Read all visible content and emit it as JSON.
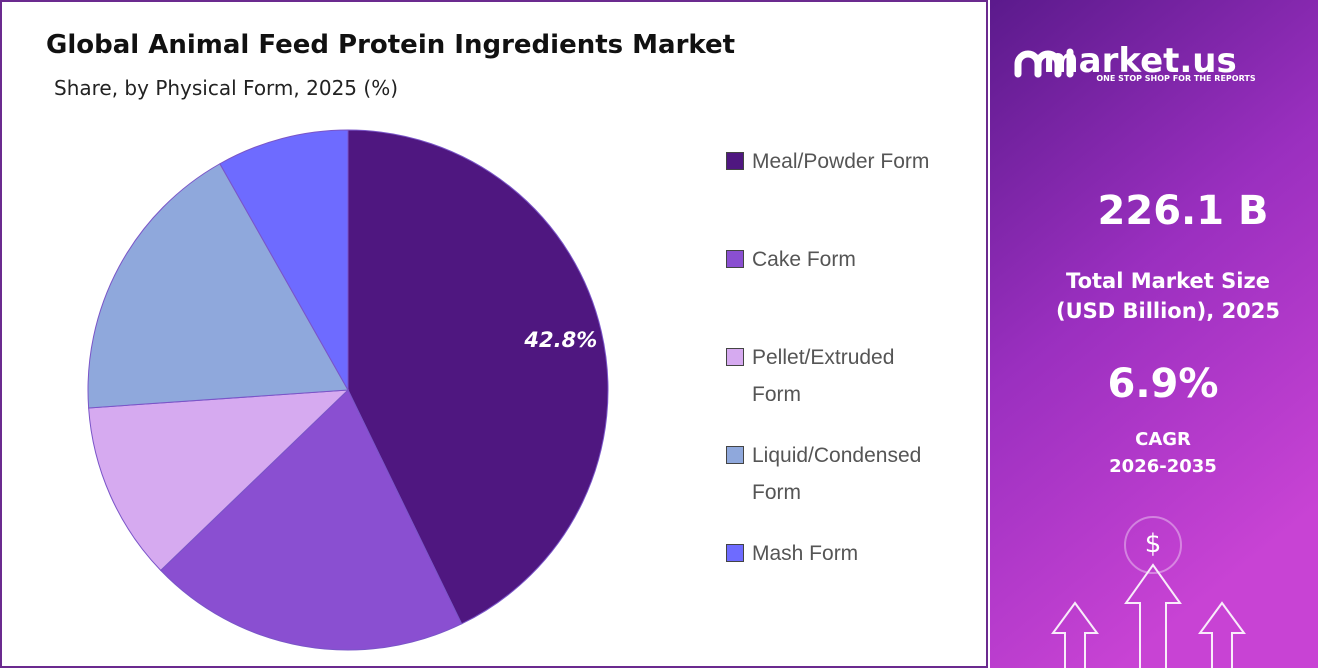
{
  "chart_data": {
    "type": "pie",
    "title": "Global Animal Feed Protein Ingredients Market",
    "subtitle": "Share, by Physical Form, 2025 (%)",
    "categories": [
      "Meal/Powder Form",
      "Cake Form",
      "Pellet/Extruded Form",
      "Liquid/Condensed Form",
      "Mash Form"
    ],
    "values": [
      42.8,
      20.0,
      11.1,
      17.9,
      8.2
    ],
    "value_labels": [
      "42.8%",
      null,
      null,
      null,
      null
    ],
    "colors": [
      "#4f1780",
      "#8a4fd1",
      "#d6aaf0",
      "#8fa8dc",
      "#6e6bff"
    ],
    "legend": "right"
  },
  "panel": {
    "brand": "market.us",
    "tagline": "ONE STOP SHOP FOR THE REPORTS",
    "market_size": "226.1 B",
    "market_size_label": [
      "Total Market Size",
      "(USD Billion), 2025"
    ],
    "cagr": "6.9%",
    "cagr_label": [
      "CAGR",
      "2026-2035"
    ]
  }
}
